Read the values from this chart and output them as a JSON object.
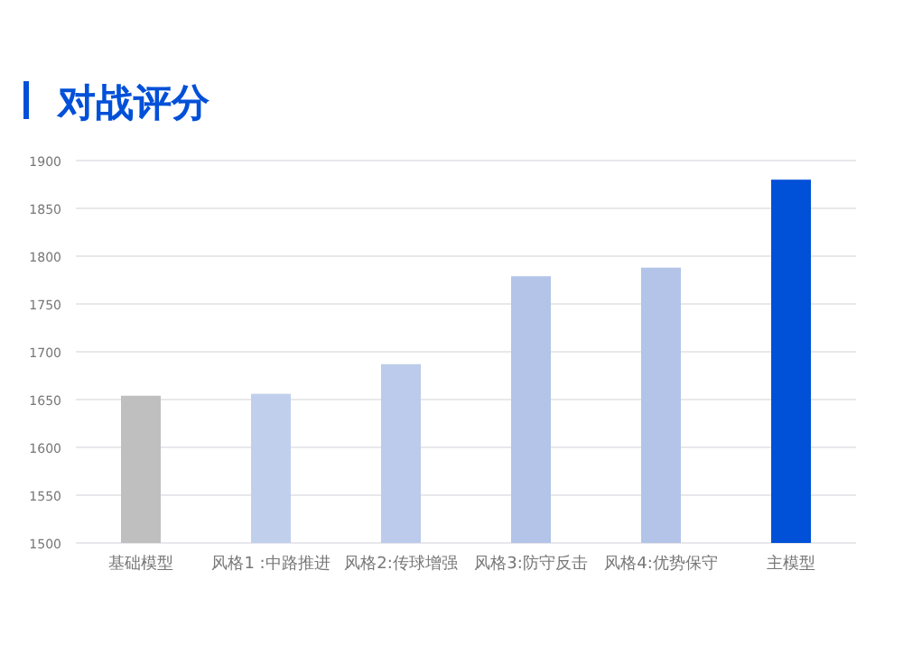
{
  "chart_data": {
    "type": "bar",
    "title": "对战评分",
    "categories": [
      "基础模型",
      "风格1 :中路推进",
      "风格2:传球增强",
      "风格3:防守反击",
      "风格4:优势保守",
      "主模型"
    ],
    "values": [
      1654,
      1656,
      1687,
      1779,
      1788,
      1880
    ],
    "colors": [
      "#bfbfbf",
      "#c0cfec",
      "#bccbeb",
      "#b3c4e8",
      "#b3c4e8",
      "#0050d8"
    ],
    "ylim": [
      1500,
      1900
    ],
    "yticks": [
      1500,
      1550,
      1600,
      1650,
      1700,
      1750,
      1800,
      1850,
      1900
    ],
    "grid": "y"
  }
}
